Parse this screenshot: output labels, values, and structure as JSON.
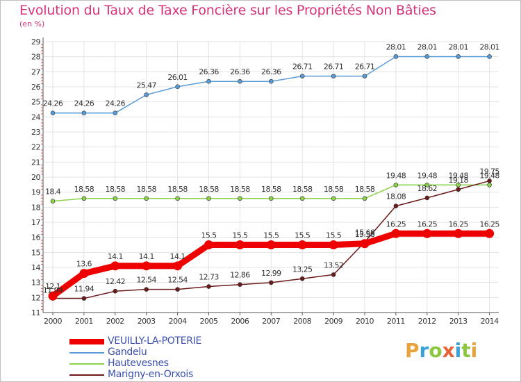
{
  "header": {
    "title": "Evolution du Taux de Taxe Foncière sur les Propriétés Non Bâties",
    "unit": "(en %)"
  },
  "brand": {
    "letters": [
      "P",
      "r",
      "o",
      "x",
      "i",
      "t",
      "i"
    ],
    "colors": [
      "#e8a33a",
      "#3aa0d8",
      "#8cc63f",
      "#e8633a",
      "#3aa0d8",
      "#8cc63f",
      "#e8a33a"
    ]
  },
  "chart_data": {
    "type": "line",
    "x": [
      "2000",
      "2001",
      "2002",
      "2003",
      "2004",
      "2005",
      "2006",
      "2007",
      "2008",
      "2009",
      "2010",
      "2011",
      "2012",
      "2013",
      "2014"
    ],
    "ylim": [
      11,
      29
    ],
    "yticks": [
      "11",
      "12",
      "13",
      "14",
      "15",
      "16",
      "17",
      "18",
      "19",
      "20",
      "21",
      "22",
      "23",
      "24",
      "25",
      "26",
      "27",
      "28",
      "29"
    ],
    "grid": true,
    "legend": "bottom-left",
    "series": [
      {
        "name": "VEUILLY-LA-POTERIE",
        "color": "#ee0000",
        "values": [
          12.1,
          13.6,
          14.1,
          14.1,
          14.1,
          15.5,
          15.5,
          15.5,
          15.5,
          15.5,
          15.58,
          16.25,
          16.25,
          16.25,
          16.25
        ],
        "labels": [
          "12.1",
          "13.6",
          "14.1",
          "14.1",
          "14.1",
          "15.5",
          "15.5",
          "15.5",
          "15.5",
          "15.5",
          "15.58",
          "16.25",
          "16.25",
          "16.25",
          "16.25"
        ]
      },
      {
        "name": "Gandelu",
        "color": "#5b9bd5",
        "values": [
          24.26,
          24.26,
          24.26,
          25.47,
          26.01,
          26.36,
          26.36,
          26.36,
          26.71,
          26.71,
          26.71,
          28.01,
          28.01,
          28.01,
          28.01
        ],
        "labels": [
          "24.26",
          "24.26",
          "24.26",
          "25.47",
          "26.01",
          "26.36",
          "26.36",
          "26.36",
          "26.71",
          "26.71",
          "26.71",
          "28.01",
          "28.01",
          "28.01",
          "28.01"
        ]
      },
      {
        "name": "Hautevesnes",
        "color": "#8cd24a",
        "values": [
          18.4,
          18.58,
          18.58,
          18.58,
          18.58,
          18.58,
          18.58,
          18.58,
          18.58,
          18.58,
          18.58,
          19.48,
          19.48,
          19.48,
          19.48
        ],
        "labels": [
          "18.4",
          "18.58",
          "18.58",
          "18.58",
          "18.58",
          "18.58",
          "18.58",
          "18.58",
          "18.58",
          "18.58",
          "18.58",
          "19.48",
          "19.48",
          "19.48",
          "19.48"
        ]
      },
      {
        "name": "Marigny-en-Orxois",
        "color": "#6b1a1a",
        "values": [
          11.94,
          11.94,
          12.42,
          12.54,
          12.54,
          12.73,
          12.86,
          12.99,
          13.25,
          13.52,
          15.68,
          18.08,
          18.62,
          19.18,
          19.75
        ],
        "labels": [
          "11.94",
          "11.94",
          "12.42",
          "12.54",
          "12.54",
          "12.73",
          "12.86",
          "12.99",
          "13.25",
          "13.52",
          "15.68",
          "18.08",
          "18.62",
          "19.18",
          "19.75"
        ]
      }
    ]
  }
}
